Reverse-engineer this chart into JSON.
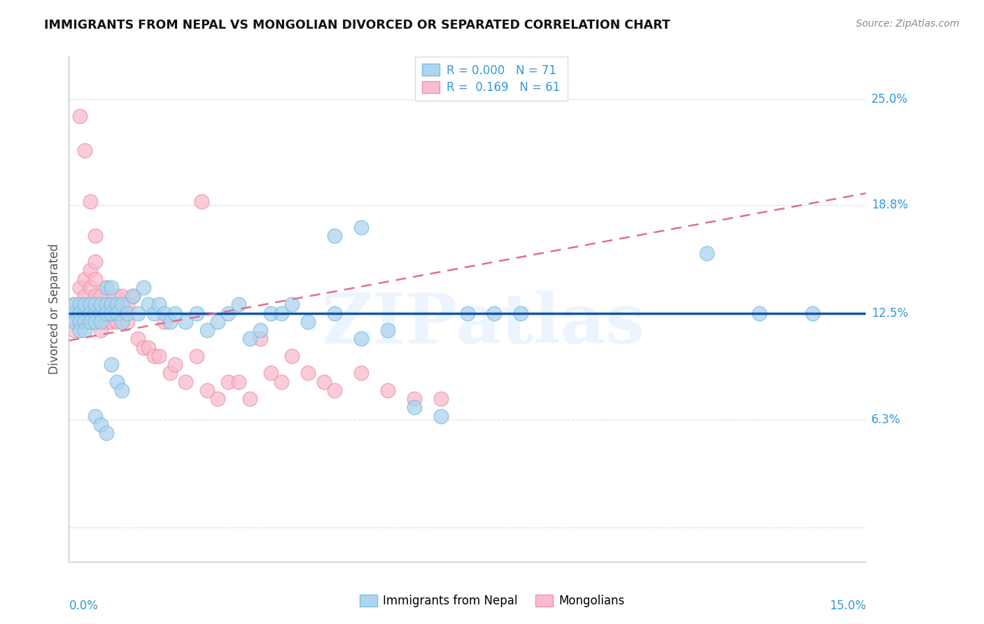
{
  "title": "IMMIGRANTS FROM NEPAL VS MONGOLIAN DIVORCED OR SEPARATED CORRELATION CHART",
  "source": "Source: ZipAtlas.com",
  "ylabel": "Divorced or Separated",
  "xmin": 0.0,
  "xmax": 0.15,
  "ymin": -0.02,
  "ymax": 0.275,
  "nepal_color": "#AED4EE",
  "mongolia_color": "#F9BCCC",
  "nepal_edge": "#7BBEE0",
  "mongolia_edge": "#F090AC",
  "trendline_nepal_color": "#1155AA",
  "trendline_mongolia_color": "#E07090",
  "watermark": "ZIPatlas",
  "nepal_x": [
    0.001,
    0.001,
    0.001,
    0.002,
    0.002,
    0.002,
    0.002,
    0.003,
    0.003,
    0.003,
    0.003,
    0.004,
    0.004,
    0.004,
    0.005,
    0.005,
    0.005,
    0.006,
    0.006,
    0.006,
    0.007,
    0.007,
    0.007,
    0.008,
    0.008,
    0.008,
    0.009,
    0.009,
    0.01,
    0.01,
    0.011,
    0.012,
    0.013,
    0.014,
    0.015,
    0.016,
    0.017,
    0.018,
    0.019,
    0.02,
    0.022,
    0.024,
    0.026,
    0.028,
    0.03,
    0.032,
    0.034,
    0.036,
    0.038,
    0.04,
    0.042,
    0.045,
    0.05,
    0.055,
    0.06,
    0.065,
    0.07,
    0.075,
    0.08,
    0.085,
    0.05,
    0.055,
    0.12,
    0.13,
    0.14,
    0.005,
    0.006,
    0.007,
    0.008,
    0.009,
    0.01
  ],
  "nepal_y": [
    0.13,
    0.125,
    0.12,
    0.13,
    0.125,
    0.12,
    0.115,
    0.125,
    0.13,
    0.12,
    0.115,
    0.13,
    0.125,
    0.12,
    0.125,
    0.13,
    0.12,
    0.125,
    0.13,
    0.12,
    0.14,
    0.13,
    0.125,
    0.14,
    0.13,
    0.125,
    0.13,
    0.125,
    0.13,
    0.12,
    0.125,
    0.135,
    0.125,
    0.14,
    0.13,
    0.125,
    0.13,
    0.125,
    0.12,
    0.125,
    0.12,
    0.125,
    0.115,
    0.12,
    0.125,
    0.13,
    0.11,
    0.115,
    0.125,
    0.125,
    0.13,
    0.12,
    0.125,
    0.11,
    0.115,
    0.07,
    0.065,
    0.125,
    0.125,
    0.125,
    0.17,
    0.175,
    0.16,
    0.125,
    0.125,
    0.065,
    0.06,
    0.055,
    0.095,
    0.085,
    0.08
  ],
  "mongolia_x": [
    0.001,
    0.001,
    0.001,
    0.002,
    0.002,
    0.002,
    0.003,
    0.003,
    0.003,
    0.004,
    0.004,
    0.004,
    0.005,
    0.005,
    0.005,
    0.006,
    0.006,
    0.006,
    0.007,
    0.007,
    0.007,
    0.008,
    0.008,
    0.009,
    0.009,
    0.01,
    0.01,
    0.011,
    0.011,
    0.012,
    0.013,
    0.014,
    0.015,
    0.016,
    0.017,
    0.018,
    0.019,
    0.02,
    0.022,
    0.024,
    0.026,
    0.028,
    0.03,
    0.032,
    0.034,
    0.036,
    0.038,
    0.04,
    0.042,
    0.045,
    0.048,
    0.05,
    0.055,
    0.06,
    0.065,
    0.07,
    0.002,
    0.003,
    0.004,
    0.005,
    0.025
  ],
  "mongolia_y": [
    0.13,
    0.12,
    0.115,
    0.14,
    0.13,
    0.12,
    0.145,
    0.135,
    0.125,
    0.15,
    0.14,
    0.13,
    0.155,
    0.145,
    0.135,
    0.135,
    0.125,
    0.115,
    0.14,
    0.13,
    0.12,
    0.13,
    0.12,
    0.135,
    0.12,
    0.135,
    0.125,
    0.13,
    0.12,
    0.135,
    0.11,
    0.105,
    0.105,
    0.1,
    0.1,
    0.12,
    0.09,
    0.095,
    0.085,
    0.1,
    0.08,
    0.075,
    0.085,
    0.085,
    0.075,
    0.11,
    0.09,
    0.085,
    0.1,
    0.09,
    0.085,
    0.08,
    0.09,
    0.08,
    0.075,
    0.075,
    0.24,
    0.22,
    0.19,
    0.17,
    0.19
  ],
  "nepal_trendline_y": 0.125,
  "mongolia_trend_x0": 0.0,
  "mongolia_trend_y0": 0.109,
  "mongolia_trend_x1": 0.15,
  "mongolia_trend_y1": 0.195
}
